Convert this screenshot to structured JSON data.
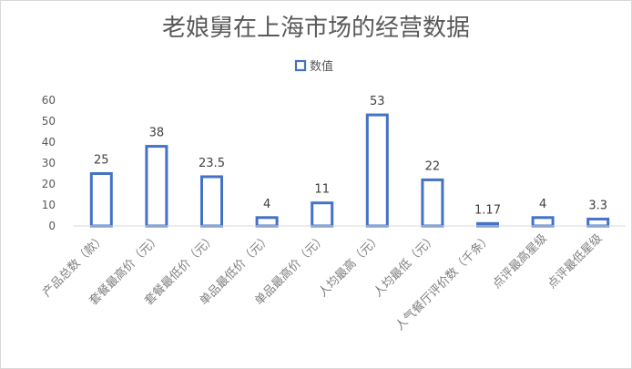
{
  "chart_data": {
    "type": "bar",
    "title": "老娘舅在上海市场的经营数据",
    "legend": {
      "position": "top",
      "entries": [
        "数值"
      ]
    },
    "categories": [
      "产品总数（款）",
      "套餐最高价（元）",
      "套餐最低价（元）",
      "单品最低价（元）",
      "单品最高价（元）",
      "人均最高（元）",
      "人均最低（元）",
      "人气餐厅评价数（千条）",
      "点评最高星级",
      "点评最低星级"
    ],
    "series": [
      {
        "name": "数值",
        "values": [
          25,
          38,
          23.5,
          4,
          11,
          53,
          22,
          1.17,
          4,
          3.3
        ]
      }
    ],
    "data_labels": [
      "25",
      "38",
      "23.5",
      "4",
      "11",
      "53",
      "22",
      "1.17",
      "4",
      "3.3"
    ],
    "ylim": [
      0,
      60
    ],
    "yticks": [
      0,
      10,
      20,
      30,
      40,
      50,
      60
    ],
    "grid": false,
    "colors": {
      "bar_stroke": "#4472c4",
      "bar_fill": "#ffffff",
      "text": "#595959"
    }
  }
}
